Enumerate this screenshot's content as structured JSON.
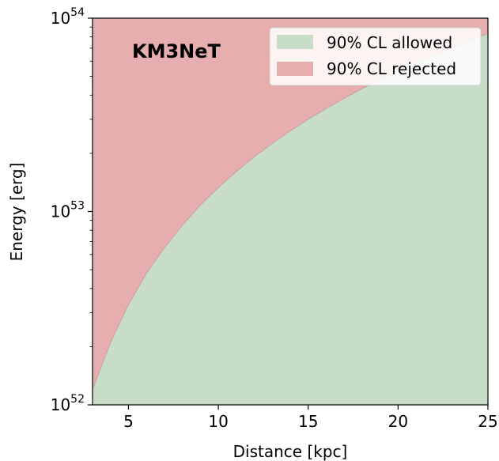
{
  "chart_data": {
    "type": "area",
    "xlabel": "Distance [kpc]",
    "ylabel": "Energy [erg]",
    "xlim": [
      3,
      25
    ],
    "ylim": [
      1e+52,
      1e+54
    ],
    "yscale": "log",
    "x_ticks": [
      5,
      10,
      15,
      20,
      25
    ],
    "x_tick_labels": [
      "5",
      "10",
      "15",
      "20",
      "25"
    ],
    "y_ticks": [
      1e+52,
      1e+53,
      1e+54
    ],
    "y_tick_labels": [
      {
        "base": "10",
        "exp": "52"
      },
      {
        "base": "10",
        "exp": "53"
      },
      {
        "base": "10",
        "exp": "54"
      }
    ],
    "annotation": "KM3NeT",
    "boundary": {
      "x": [
        3,
        4,
        5,
        6,
        7,
        8,
        9,
        10,
        11,
        12,
        13,
        14,
        15,
        16,
        17,
        18,
        19,
        20,
        21,
        22,
        23,
        24,
        25
      ],
      "y": [
        1.2e+52,
        2.1e+52,
        3.3e+52,
        4.8e+52,
        6.5e+52,
        8.5e+52,
        1.08e+53,
        1.33e+53,
        1.61e+53,
        1.92e+53,
        2.25e+53,
        2.61e+53,
        3e+53,
        3.41e+53,
        3.85e+53,
        4.32e+53,
        4.81e+53,
        5.33e+53,
        5.88e+53,
        6.45e+53,
        7.05e+53,
        7.68e+53,
        8.33e+53
      ]
    },
    "series": [
      {
        "name": "90% CL allowed",
        "color": "#c7ddc7"
      },
      {
        "name": "90% CL rejected",
        "color": "#e6aeae"
      }
    ],
    "legend_position": "top-right",
    "grid": false
  }
}
